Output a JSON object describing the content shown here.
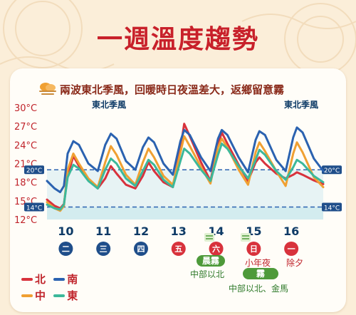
{
  "title": "一週溫度趨勢",
  "subtitle": "兩波東北季風，回暖時日夜溫差大，返鄉留意霧",
  "monsoon_label_1": "東北季風",
  "monsoon_label_2": "東北季風",
  "fog_note_1": {
    "pill": "晨霧",
    "text": "中部以北"
  },
  "fog_note_2": {
    "pill": "霧",
    "text": "中部以北、金馬"
  },
  "holiday_1": "小年夜",
  "holiday_2": "除夕",
  "legend": [
    {
      "name": "北",
      "color": "#d8323c"
    },
    {
      "name": "南",
      "color": "#2b62b0"
    },
    {
      "name": "中",
      "color": "#f0a032"
    },
    {
      "name": "東",
      "color": "#3cb89a"
    }
  ],
  "ref_lines": [
    {
      "label": "20°C",
      "value": 20
    },
    {
      "label": "14°C",
      "value": 14
    }
  ],
  "icon_names": [
    "fog-cloud-icon",
    "fog-icon"
  ],
  "chart_data": {
    "type": "line",
    "ylim": [
      12,
      30
    ],
    "y_ticks": [
      {
        "label": "30°C",
        "value": 30
      },
      {
        "label": "27°C",
        "value": 27
      },
      {
        "label": "24°C",
        "value": 24
      },
      {
        "label": "21°C",
        "value": 21
      },
      {
        "label": "18°C",
        "value": 18
      },
      {
        "label": "15°C",
        "value": 15
      },
      {
        "label": "12°C",
        "value": 12
      }
    ],
    "x_label_prefix": "",
    "days": [
      {
        "date": "10",
        "weekday": "二",
        "weekend": false
      },
      {
        "date": "11",
        "weekday": "三",
        "weekend": false
      },
      {
        "date": "12",
        "weekday": "四",
        "weekend": false
      },
      {
        "date": "13",
        "weekday": "五",
        "weekend": true
      },
      {
        "date": "14",
        "weekday": "六",
        "weekend": true
      },
      {
        "date": "15",
        "weekday": "日",
        "weekend": true
      },
      {
        "date": "16",
        "weekday": "一",
        "weekend": true
      }
    ],
    "x_range": [
      9.5,
      16.85
    ],
    "series": [
      {
        "name": "北",
        "color": "#d8323c",
        "points": [
          [
            9.5,
            15.2
          ],
          [
            9.7,
            14.2
          ],
          [
            9.85,
            13.8
          ],
          [
            9.95,
            14.5
          ],
          [
            10.05,
            19.0
          ],
          [
            10.2,
            22.2
          ],
          [
            10.35,
            20.6
          ],
          [
            10.6,
            18.4
          ],
          [
            10.85,
            17.0
          ],
          [
            11.05,
            18.6
          ],
          [
            11.2,
            20.6
          ],
          [
            11.35,
            19.4
          ],
          [
            11.6,
            17.6
          ],
          [
            11.85,
            17.0
          ],
          [
            12.05,
            19.0
          ],
          [
            12.2,
            21.2
          ],
          [
            12.35,
            19.8
          ],
          [
            12.6,
            18.0
          ],
          [
            12.85,
            17.2
          ],
          [
            13.05,
            23.4
          ],
          [
            13.15,
            27.4
          ],
          [
            13.3,
            25.4
          ],
          [
            13.6,
            21.2
          ],
          [
            13.85,
            18.2
          ],
          [
            14.05,
            24.0
          ],
          [
            14.15,
            26.0
          ],
          [
            14.3,
            24.2
          ],
          [
            14.6,
            20.8
          ],
          [
            14.85,
            18.2
          ],
          [
            15.05,
            21.2
          ],
          [
            15.15,
            22.0
          ],
          [
            15.3,
            21.0
          ],
          [
            15.6,
            19.4
          ],
          [
            15.85,
            18.6
          ],
          [
            16.05,
            19.2
          ],
          [
            16.15,
            19.6
          ],
          [
            16.3,
            19.2
          ],
          [
            16.6,
            18.3
          ],
          [
            16.85,
            17.7
          ]
        ]
      },
      {
        "name": "中",
        "color": "#f0a032",
        "points": [
          [
            9.5,
            14.8
          ],
          [
            9.7,
            13.8
          ],
          [
            9.85,
            13.4
          ],
          [
            9.95,
            14.2
          ],
          [
            10.05,
            20.0
          ],
          [
            10.2,
            22.6
          ],
          [
            10.35,
            21.0
          ],
          [
            10.6,
            18.6
          ],
          [
            10.85,
            17.2
          ],
          [
            11.05,
            21.2
          ],
          [
            11.2,
            23.8
          ],
          [
            11.35,
            22.4
          ],
          [
            11.6,
            19.2
          ],
          [
            11.85,
            17.6
          ],
          [
            12.05,
            21.2
          ],
          [
            12.2,
            23.4
          ],
          [
            12.35,
            22.0
          ],
          [
            12.6,
            19.0
          ],
          [
            12.85,
            17.6
          ],
          [
            13.05,
            22.8
          ],
          [
            13.15,
            25.4
          ],
          [
            13.3,
            23.8
          ],
          [
            13.6,
            20.4
          ],
          [
            13.85,
            17.8
          ],
          [
            14.05,
            23.6
          ],
          [
            14.15,
            25.0
          ],
          [
            14.3,
            23.6
          ],
          [
            14.6,
            20.0
          ],
          [
            14.85,
            17.6
          ],
          [
            15.05,
            22.8
          ],
          [
            15.15,
            24.4
          ],
          [
            15.3,
            23.0
          ],
          [
            15.6,
            19.8
          ],
          [
            15.85,
            17.4
          ],
          [
            16.05,
            22.6
          ],
          [
            16.15,
            24.4
          ],
          [
            16.3,
            22.8
          ],
          [
            16.6,
            18.8
          ],
          [
            16.85,
            17.2
          ]
        ]
      },
      {
        "name": "南",
        "color": "#2b62b0",
        "points": [
          [
            9.5,
            18.2
          ],
          [
            9.7,
            17.0
          ],
          [
            9.85,
            16.4
          ],
          [
            9.95,
            17.4
          ],
          [
            10.05,
            22.6
          ],
          [
            10.2,
            24.6
          ],
          [
            10.35,
            24.0
          ],
          [
            10.6,
            21.0
          ],
          [
            10.85,
            19.8
          ],
          [
            11.05,
            24.0
          ],
          [
            11.2,
            25.8
          ],
          [
            11.35,
            25.0
          ],
          [
            11.6,
            21.4
          ],
          [
            11.85,
            20.0
          ],
          [
            12.05,
            23.6
          ],
          [
            12.2,
            25.2
          ],
          [
            12.35,
            24.4
          ],
          [
            12.6,
            21.0
          ],
          [
            12.85,
            19.2
          ],
          [
            13.05,
            24.6
          ],
          [
            13.15,
            26.4
          ],
          [
            13.3,
            25.6
          ],
          [
            13.6,
            22.0
          ],
          [
            13.85,
            19.8
          ],
          [
            14.05,
            25.0
          ],
          [
            14.15,
            26.4
          ],
          [
            14.3,
            25.6
          ],
          [
            14.6,
            22.0
          ],
          [
            14.85,
            19.6
          ],
          [
            15.05,
            24.8
          ],
          [
            15.15,
            26.2
          ],
          [
            15.3,
            25.6
          ],
          [
            15.6,
            21.6
          ],
          [
            15.85,
            19.8
          ],
          [
            16.05,
            25.2
          ],
          [
            16.15,
            26.8
          ],
          [
            16.3,
            26.0
          ],
          [
            16.6,
            21.8
          ],
          [
            16.85,
            19.8
          ]
        ]
      },
      {
        "name": "東",
        "color": "#3cb89a",
        "points": [
          [
            9.5,
            14.4
          ],
          [
            9.7,
            13.8
          ],
          [
            9.85,
            13.6
          ],
          [
            9.95,
            14.4
          ],
          [
            10.05,
            18.8
          ],
          [
            10.2,
            20.8
          ],
          [
            10.35,
            20.2
          ],
          [
            10.6,
            18.2
          ],
          [
            10.85,
            17.0
          ],
          [
            11.05,
            20.0
          ],
          [
            11.2,
            21.8
          ],
          [
            11.35,
            21.0
          ],
          [
            11.6,
            18.6
          ],
          [
            11.85,
            17.4
          ],
          [
            12.05,
            19.8
          ],
          [
            12.2,
            21.6
          ],
          [
            12.35,
            20.8
          ],
          [
            12.6,
            18.4
          ],
          [
            12.85,
            17.2
          ],
          [
            13.05,
            21.4
          ],
          [
            13.15,
            23.4
          ],
          [
            13.3,
            22.6
          ],
          [
            13.6,
            20.0
          ],
          [
            13.85,
            18.2
          ],
          [
            14.05,
            22.4
          ],
          [
            14.15,
            24.2
          ],
          [
            14.3,
            23.4
          ],
          [
            14.6,
            20.6
          ],
          [
            14.85,
            18.6
          ],
          [
            15.05,
            21.6
          ],
          [
            15.15,
            23.2
          ],
          [
            15.3,
            22.4
          ],
          [
            15.6,
            19.8
          ],
          [
            15.85,
            18.4
          ],
          [
            16.05,
            20.4
          ],
          [
            16.15,
            21.6
          ],
          [
            16.3,
            21.0
          ],
          [
            16.6,
            19.0
          ],
          [
            16.85,
            18.0
          ]
        ]
      }
    ]
  }
}
